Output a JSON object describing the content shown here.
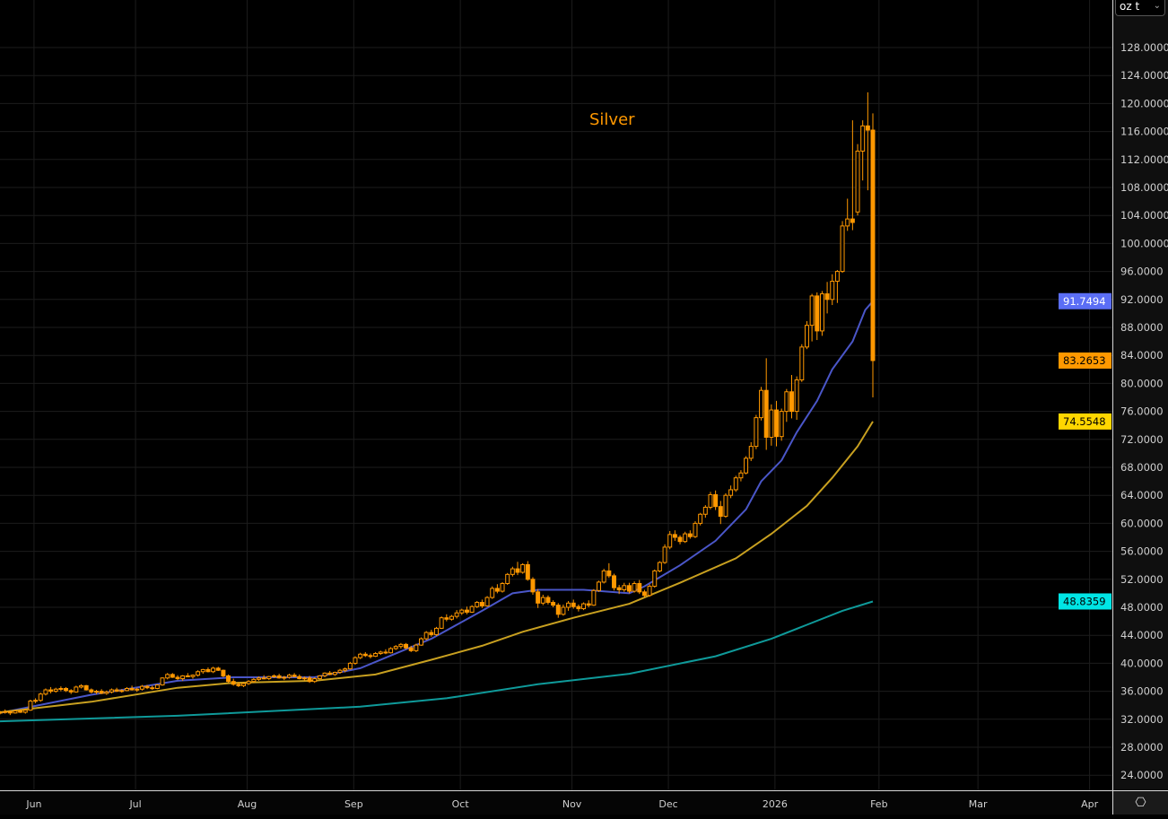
{
  "header": {
    "unit_selector": "oz t",
    "chevron": "⌄",
    "settings_icon": "⎔"
  },
  "chart_data": {
    "type": "candlestick",
    "title": "Silver",
    "ylim": [
      20,
      132
    ],
    "yticks": [
      24,
      28,
      32,
      36,
      40,
      44,
      48,
      52,
      56,
      60,
      64,
      68,
      72,
      76,
      80,
      84,
      88,
      92,
      96,
      100,
      104,
      108,
      112,
      116,
      120,
      124,
      128
    ],
    "ytick_format_decimals": 4,
    "xticks": [
      {
        "label": "Jun",
        "bar": 6
      },
      {
        "label": "Jul",
        "bar": 26
      },
      {
        "label": "Aug",
        "bar": 48
      },
      {
        "label": "Sep",
        "bar": 69
      },
      {
        "label": "Oct",
        "bar": 90
      },
      {
        "label": "Nov",
        "bar": 112
      },
      {
        "label": "Dec",
        "bar": 131
      },
      {
        "label": "2026",
        "bar": 152
      },
      {
        "label": "Feb",
        "bar": 172.5
      },
      {
        "label": "Mar",
        "bar": 192
      },
      {
        "label": "Apr",
        "bar": 214
      }
    ],
    "up_style": "hollow",
    "down_style": "filled",
    "candle_color": "#ff9800",
    "ohlc": [
      [
        32.9,
        33.2,
        32.7,
        33.0
      ],
      [
        33.0,
        33.4,
        32.8,
        33.1
      ],
      [
        33.1,
        33.3,
        32.6,
        32.9
      ],
      [
        32.9,
        33.3,
        32.8,
        33.2
      ],
      [
        33.2,
        33.4,
        32.9,
        33.0
      ],
      [
        33.0,
        33.5,
        32.8,
        33.3
      ],
      [
        33.3,
        34.8,
        33.2,
        34.6
      ],
      [
        34.6,
        35.0,
        34.3,
        34.7
      ],
      [
        34.7,
        35.8,
        34.5,
        35.6
      ],
      [
        35.6,
        36.4,
        35.4,
        36.2
      ],
      [
        36.2,
        36.6,
        35.7,
        36.0
      ],
      [
        36.0,
        36.5,
        35.8,
        36.3
      ],
      [
        36.3,
        36.7,
        36.0,
        36.4
      ],
      [
        36.4,
        36.6,
        35.9,
        36.1
      ],
      [
        36.1,
        36.3,
        35.6,
        35.9
      ],
      [
        35.9,
        36.8,
        35.8,
        36.6
      ],
      [
        36.6,
        37.0,
        36.4,
        36.8
      ],
      [
        36.8,
        36.9,
        36.1,
        36.2
      ],
      [
        36.2,
        36.4,
        35.7,
        35.9
      ],
      [
        35.9,
        36.2,
        35.6,
        36.0
      ],
      [
        36.0,
        36.3,
        35.6,
        35.7
      ],
      [
        35.7,
        36.1,
        35.5,
        35.9
      ],
      [
        35.9,
        36.4,
        35.7,
        36.2
      ],
      [
        36.2,
        36.5,
        35.9,
        36.0
      ],
      [
        36.0,
        36.3,
        35.8,
        36.1
      ],
      [
        36.1,
        36.6,
        36.0,
        36.4
      ],
      [
        36.4,
        36.8,
        36.1,
        36.2
      ],
      [
        36.2,
        36.5,
        35.9,
        36.3
      ],
      [
        36.3,
        36.9,
        36.1,
        36.7
      ],
      [
        36.7,
        36.9,
        36.3,
        36.5
      ],
      [
        36.5,
        36.8,
        36.2,
        36.4
      ],
      [
        36.4,
        37.0,
        36.3,
        36.9
      ],
      [
        36.9,
        38.0,
        36.8,
        37.9
      ],
      [
        37.9,
        38.6,
        37.7,
        38.4
      ],
      [
        38.4,
        38.6,
        37.9,
        38.0
      ],
      [
        38.0,
        38.3,
        37.6,
        37.8
      ],
      [
        37.8,
        38.3,
        37.5,
        38.2
      ],
      [
        38.2,
        38.6,
        38.0,
        38.1
      ],
      [
        38.1,
        38.4,
        37.8,
        38.3
      ],
      [
        38.3,
        39.0,
        38.1,
        38.8
      ],
      [
        38.8,
        39.2,
        38.5,
        39.1
      ],
      [
        39.1,
        39.4,
        38.7,
        38.8
      ],
      [
        38.8,
        39.5,
        38.6,
        39.3
      ],
      [
        39.3,
        39.5,
        38.9,
        39.0
      ],
      [
        39.0,
        39.1,
        38.0,
        38.2
      ],
      [
        38.2,
        38.4,
        37.2,
        37.4
      ],
      [
        37.4,
        37.8,
        36.8,
        37.0
      ],
      [
        37.0,
        37.3,
        36.6,
        36.8
      ],
      [
        36.8,
        37.3,
        36.6,
        37.1
      ],
      [
        37.1,
        37.6,
        36.9,
        37.4
      ],
      [
        37.4,
        37.9,
        37.2,
        37.7
      ],
      [
        37.7,
        38.1,
        37.5,
        37.9
      ],
      [
        37.9,
        38.3,
        37.7,
        37.8
      ],
      [
        37.8,
        38.2,
        37.6,
        38.1
      ],
      [
        38.1,
        38.4,
        37.9,
        38.2
      ],
      [
        38.2,
        38.5,
        37.8,
        37.9
      ],
      [
        37.9,
        38.2,
        37.6,
        38.0
      ],
      [
        38.0,
        38.5,
        37.8,
        38.3
      ],
      [
        38.3,
        38.6,
        38.0,
        38.1
      ],
      [
        38.1,
        38.4,
        37.7,
        37.8
      ],
      [
        37.8,
        38.1,
        37.5,
        37.9
      ],
      [
        37.9,
        38.2,
        37.2,
        37.4
      ],
      [
        37.4,
        38.0,
        37.2,
        37.8
      ],
      [
        37.8,
        38.3,
        37.7,
        38.2
      ],
      [
        38.2,
        38.7,
        38.0,
        38.6
      ],
      [
        38.6,
        38.9,
        38.3,
        38.4
      ],
      [
        38.4,
        38.8,
        38.2,
        38.7
      ],
      [
        38.7,
        39.2,
        38.5,
        39.0
      ],
      [
        39.0,
        39.4,
        38.7,
        39.2
      ],
      [
        39.2,
        40.2,
        39.1,
        40.0
      ],
      [
        40.0,
        41.0,
        39.8,
        40.8
      ],
      [
        40.8,
        41.5,
        40.6,
        41.3
      ],
      [
        41.3,
        41.6,
        40.9,
        41.1
      ],
      [
        41.1,
        41.4,
        40.7,
        41.0
      ],
      [
        41.0,
        41.6,
        40.9,
        41.4
      ],
      [
        41.4,
        41.8,
        41.2,
        41.6
      ],
      [
        41.6,
        42.0,
        41.3,
        41.5
      ],
      [
        41.5,
        42.3,
        41.4,
        42.1
      ],
      [
        42.1,
        42.6,
        41.9,
        42.4
      ],
      [
        42.4,
        42.9,
        42.1,
        42.7
      ],
      [
        42.7,
        42.9,
        42.0,
        42.2
      ],
      [
        42.2,
        42.5,
        41.6,
        41.8
      ],
      [
        41.8,
        42.8,
        41.6,
        42.6
      ],
      [
        42.6,
        43.7,
        42.5,
        43.5
      ],
      [
        43.5,
        44.6,
        43.3,
        44.4
      ],
      [
        44.4,
        44.8,
        43.8,
        44.1
      ],
      [
        44.1,
        45.2,
        43.9,
        45.0
      ],
      [
        45.0,
        46.7,
        44.9,
        46.5
      ],
      [
        46.5,
        47.0,
        46.0,
        46.3
      ],
      [
        46.3,
        46.9,
        46.1,
        46.7
      ],
      [
        46.7,
        47.6,
        46.4,
        47.2
      ],
      [
        47.2,
        47.8,
        46.9,
        47.6
      ],
      [
        47.6,
        48.1,
        47.0,
        47.3
      ],
      [
        47.3,
        48.3,
        47.2,
        48.1
      ],
      [
        48.1,
        48.9,
        47.9,
        48.7
      ],
      [
        48.7,
        49.1,
        47.9,
        48.2
      ],
      [
        48.2,
        49.6,
        48.1,
        49.4
      ],
      [
        49.4,
        51.0,
        49.2,
        50.7
      ],
      [
        50.7,
        51.3,
        50.0,
        50.3
      ],
      [
        50.3,
        51.6,
        50.1,
        51.4
      ],
      [
        51.4,
        52.9,
        51.2,
        52.7
      ],
      [
        52.7,
        53.8,
        52.4,
        53.5
      ],
      [
        53.5,
        54.5,
        52.6,
        53.0
      ],
      [
        53.0,
        54.3,
        52.8,
        54.1
      ],
      [
        54.1,
        54.6,
        51.8,
        52.0
      ],
      [
        52.0,
        52.3,
        49.8,
        50.2
      ],
      [
        50.2,
        50.6,
        47.9,
        48.6
      ],
      [
        48.6,
        49.8,
        48.3,
        49.4
      ],
      [
        49.4,
        49.7,
        48.4,
        48.7
      ],
      [
        48.7,
        49.0,
        48.0,
        48.3
      ],
      [
        48.3,
        48.6,
        46.5,
        47.0
      ],
      [
        47.0,
        48.4,
        46.8,
        48.0
      ],
      [
        48.0,
        48.9,
        47.5,
        48.6
      ],
      [
        48.6,
        49.1,
        47.8,
        48.1
      ],
      [
        48.1,
        48.4,
        47.4,
        47.8
      ],
      [
        47.8,
        48.7,
        47.6,
        48.5
      ],
      [
        48.5,
        49.0,
        48.0,
        48.3
      ],
      [
        48.3,
        50.6,
        48.2,
        50.4
      ],
      [
        50.4,
        51.8,
        50.2,
        51.6
      ],
      [
        51.6,
        53.5,
        51.4,
        53.2
      ],
      [
        53.2,
        54.3,
        52.2,
        52.5
      ],
      [
        52.5,
        52.8,
        50.4,
        50.8
      ],
      [
        50.8,
        51.2,
        49.9,
        50.5
      ],
      [
        50.5,
        51.5,
        50.2,
        51.1
      ],
      [
        51.1,
        51.5,
        50.0,
        50.3
      ],
      [
        50.3,
        51.7,
        50.1,
        51.4
      ],
      [
        51.4,
        51.9,
        49.9,
        50.2
      ],
      [
        50.2,
        50.5,
        49.4,
        49.7
      ],
      [
        49.7,
        51.3,
        49.5,
        51.0
      ],
      [
        51.0,
        53.4,
        50.8,
        53.2
      ],
      [
        53.2,
        54.6,
        53.0,
        54.4
      ],
      [
        54.4,
        57.0,
        54.2,
        56.6
      ],
      [
        56.6,
        58.9,
        56.3,
        58.4
      ],
      [
        58.4,
        59.0,
        57.5,
        58.0
      ],
      [
        58.0,
        58.3,
        57.0,
        57.4
      ],
      [
        57.4,
        58.8,
        57.2,
        58.5
      ],
      [
        58.5,
        59.0,
        57.8,
        58.1
      ],
      [
        58.1,
        60.3,
        57.9,
        60.0
      ],
      [
        60.0,
        61.5,
        59.7,
        61.3
      ],
      [
        61.3,
        62.6,
        60.8,
        62.3
      ],
      [
        62.3,
        64.5,
        62.0,
        64.1
      ],
      [
        64.1,
        64.7,
        61.9,
        62.4
      ],
      [
        62.4,
        63.2,
        59.9,
        61.0
      ],
      [
        61.0,
        64.3,
        60.8,
        64.0
      ],
      [
        64.0,
        65.4,
        63.6,
        64.8
      ],
      [
        64.8,
        66.8,
        64.5,
        66.5
      ],
      [
        66.5,
        67.6,
        66.0,
        67.2
      ],
      [
        67.2,
        69.6,
        67.0,
        69.3
      ],
      [
        69.3,
        71.6,
        68.9,
        71.0
      ],
      [
        71.0,
        75.5,
        70.6,
        75.1
      ],
      [
        75.1,
        79.5,
        74.7,
        79.0
      ],
      [
        79.0,
        83.6,
        70.5,
        72.3
      ],
      [
        72.3,
        77.0,
        71.1,
        76.2
      ],
      [
        76.2,
        77.5,
        71.0,
        72.4
      ],
      [
        72.4,
        76.4,
        71.8,
        76.0
      ],
      [
        76.0,
        79.2,
        74.5,
        78.8
      ],
      [
        78.8,
        81.2,
        75.0,
        76.0
      ],
      [
        76.0,
        81.0,
        74.8,
        80.5
      ],
      [
        80.5,
        85.6,
        80.2,
        85.2
      ],
      [
        85.2,
        88.9,
        84.9,
        88.3
      ],
      [
        88.3,
        92.8,
        86.0,
        92.5
      ],
      [
        92.5,
        93.0,
        86.2,
        87.5
      ],
      [
        87.5,
        93.2,
        86.8,
        92.8
      ],
      [
        92.8,
        94.5,
        90.0,
        92.0
      ],
      [
        92.0,
        95.6,
        91.2,
        94.6
      ],
      [
        94.6,
        96.2,
        91.5,
        96.0
      ],
      [
        96.0,
        103.2,
        95.8,
        102.5
      ],
      [
        102.5,
        106.4,
        101.8,
        103.5
      ],
      [
        103.5,
        117.6,
        101.9,
        103.0
      ],
      [
        104.5,
        114.2,
        104.0,
        113.2
      ],
      [
        113.2,
        117.6,
        109.0,
        116.8
      ],
      [
        116.8,
        121.6,
        107.6,
        116.2
      ],
      [
        116.2,
        118.6,
        78.0,
        83.2653
      ]
    ],
    "moving_averages": [
      {
        "name": "ma-fast",
        "color": "#4a56c8",
        "last": "91.7494",
        "tag_color": "#5b6ef5",
        "tag_text": "#ffffff",
        "points": [
          [
            0,
            32.9
          ],
          [
            18,
            35.5
          ],
          [
            25,
            36.3
          ],
          [
            35,
            37.5
          ],
          [
            46,
            38.0
          ],
          [
            62,
            38.0
          ],
          [
            71,
            39.3
          ],
          [
            85,
            43.5
          ],
          [
            95,
            47.5
          ],
          [
            101,
            50.0
          ],
          [
            106,
            50.5
          ],
          [
            115,
            50.5
          ],
          [
            124,
            50.0
          ],
          [
            127,
            51.0
          ],
          [
            134,
            54.0
          ],
          [
            141,
            57.5
          ],
          [
            147,
            62.0
          ],
          [
            150,
            66.0
          ],
          [
            154,
            69.0
          ],
          [
            157,
            73.0
          ],
          [
            161,
            77.5
          ],
          [
            164,
            82.0
          ],
          [
            168,
            86.0
          ],
          [
            170.5,
            90.5
          ],
          [
            172,
            91.7494
          ]
        ]
      },
      {
        "name": "ma-medium",
        "color": "#c8a020",
        "last": "74.5548",
        "tag_color": "#ffd600",
        "tag_text": "#000000",
        "points": [
          [
            0,
            33.0
          ],
          [
            18,
            34.5
          ],
          [
            35,
            36.5
          ],
          [
            46,
            37.2
          ],
          [
            62,
            37.5
          ],
          [
            74,
            38.4
          ],
          [
            85,
            40.5
          ],
          [
            95,
            42.5
          ],
          [
            103,
            44.5
          ],
          [
            113,
            46.5
          ],
          [
            124,
            48.5
          ],
          [
            134,
            51.5
          ],
          [
            145,
            55.0
          ],
          [
            152,
            58.5
          ],
          [
            159,
            62.5
          ],
          [
            164,
            66.5
          ],
          [
            169,
            71.0
          ],
          [
            172,
            74.5548
          ]
        ]
      },
      {
        "name": "ma-slow",
        "color": "#0f9a9a",
        "last": "48.8359",
        "tag_color": "#00e5e5",
        "tag_text": "#000000",
        "points": [
          [
            0,
            31.7
          ],
          [
            35,
            32.5
          ],
          [
            71,
            33.8
          ],
          [
            88,
            35.0
          ],
          [
            106,
            37.0
          ],
          [
            124,
            38.5
          ],
          [
            141,
            41.0
          ],
          [
            152,
            43.5
          ],
          [
            159,
            45.5
          ],
          [
            166,
            47.5
          ],
          [
            172,
            48.8359
          ]
        ]
      }
    ],
    "last_price": {
      "value": "83.2653",
      "tag_color": "#ff9800",
      "tag_text": "#000000"
    }
  }
}
